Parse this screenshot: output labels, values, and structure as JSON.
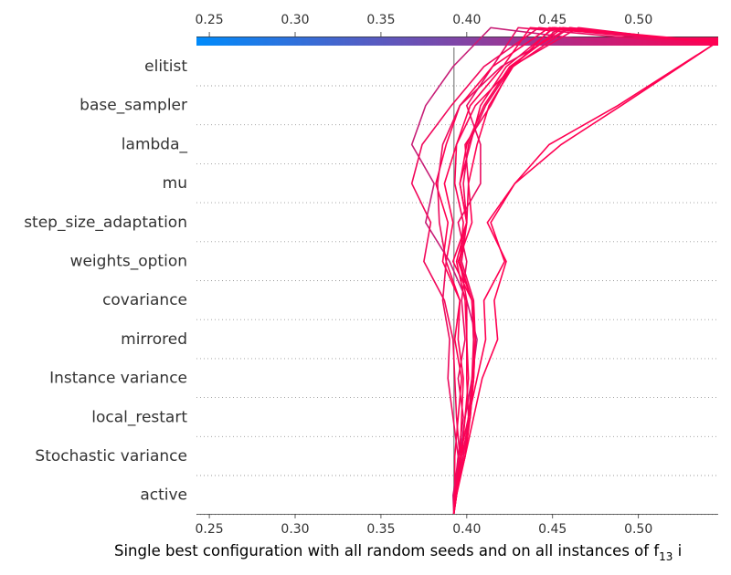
{
  "chart_data": {
    "type": "line",
    "title": "",
    "xlabel": "Single best configuration with all random seeds and on all instances of f",
    "xlabel_subscript": "13",
    "xlabel_suffix": " i",
    "xlim": [
      0.2425,
      0.5465
    ],
    "base_value": 0.3925,
    "ticks": [
      0.25,
      0.3,
      0.35,
      0.4,
      0.45,
      0.5
    ],
    "tick_labels": [
      "0.25",
      "0.30",
      "0.35",
      "0.40",
      "0.45",
      "0.50"
    ],
    "features": [
      "elitist",
      "base_sampler",
      "lambda_",
      "mu",
      "step_size_adaptation",
      "weights_option",
      "covariance",
      "mirrored",
      "Instance variance",
      "local_restart",
      "Stochastic variance",
      "active"
    ],
    "colormap": [
      "#008bfb",
      "#ff0052"
    ],
    "series": [
      {
        "values": [
          0.3925,
          0.393,
          0.395,
          0.398,
          0.395,
          0.399,
          0.397,
          0.4,
          0.395,
          0.408,
          0.408,
          0.4,
          0.415,
          0.43,
          0.52
        ]
      },
      {
        "values": [
          0.3925,
          0.392,
          0.396,
          0.399,
          0.403,
          0.406,
          0.4,
          0.39,
          0.376,
          0.381,
          0.368,
          0.376,
          0.392,
          0.414,
          0.48
        ]
      },
      {
        "values": [
          0.3925,
          0.394,
          0.399,
          0.401,
          0.406,
          0.411,
          0.41,
          0.422,
          0.414,
          0.428,
          0.455,
          0.49,
          0.546
        ]
      },
      {
        "values": [
          0.3925,
          0.394,
          0.397,
          0.402,
          0.404,
          0.405,
          0.404,
          0.397,
          0.4,
          0.401,
          0.399,
          0.414,
          0.426,
          0.465,
          0.535
        ]
      },
      {
        "values": [
          0.3925,
          0.3935,
          0.396,
          0.394,
          0.393,
          0.392,
          0.387,
          0.375,
          0.379,
          0.368,
          0.374,
          0.391,
          0.41,
          0.442,
          0.53
        ]
      },
      {
        "values": [
          0.3925,
          0.393,
          0.399,
          0.404,
          0.409,
          0.418,
          0.416,
          0.423,
          0.412,
          0.428,
          0.448,
          0.488,
          0.546
        ]
      },
      {
        "values": [
          0.3925,
          0.394,
          0.398,
          0.401,
          0.403,
          0.404,
          0.403,
          0.392,
          0.4,
          0.396,
          0.402,
          0.408,
          0.423,
          0.451,
          0.54
        ]
      },
      {
        "values": [
          0.3925,
          0.393,
          0.393,
          0.395,
          0.397,
          0.393,
          0.396,
          0.386,
          0.389,
          0.382,
          0.388,
          0.396,
          0.415,
          0.448,
          0.546
        ]
      },
      {
        "values": [
          0.3925,
          0.393,
          0.398,
          0.401,
          0.404,
          0.404,
          0.403,
          0.396,
          0.4,
          0.398,
          0.401,
          0.411,
          0.426,
          0.454,
          0.53
        ]
      },
      {
        "values": [
          0.3925,
          0.394,
          0.396,
          0.397,
          0.398,
          0.395,
          0.396,
          0.388,
          0.392,
          0.387,
          0.394,
          0.402,
          0.421,
          0.437,
          0.546
        ]
      },
      {
        "values": [
          0.3925,
          0.393,
          0.396,
          0.401,
          0.4,
          0.4,
          0.4,
          0.396,
          0.398,
          0.393,
          0.394,
          0.405,
          0.427,
          0.46,
          0.54
        ]
      },
      {
        "values": [
          0.3925,
          0.3935,
          0.399,
          0.402,
          0.404,
          0.405,
          0.403,
          0.395,
          0.403,
          0.401,
          0.406,
          0.413,
          0.427,
          0.45,
          0.546
        ]
      },
      {
        "values": [
          0.3925,
          0.3925,
          0.395,
          0.392,
          0.389,
          0.39,
          0.386,
          0.388,
          0.384,
          0.383,
          0.386,
          0.396,
          0.42,
          0.46,
          0.525
        ]
      },
      {
        "values": [
          0.3925,
          0.393,
          0.397,
          0.399,
          0.401,
          0.4,
          0.399,
          0.394,
          0.4,
          0.396,
          0.4,
          0.41,
          0.425,
          0.456,
          0.546
        ]
      }
    ]
  }
}
